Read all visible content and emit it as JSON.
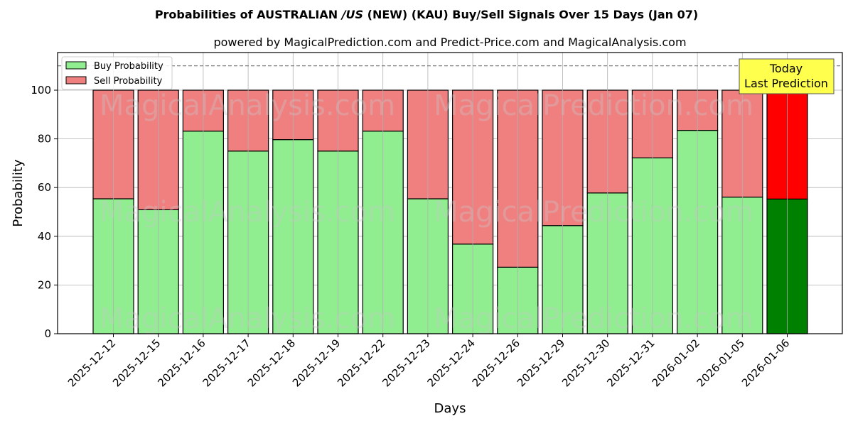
{
  "title_prefix": "Probabilities of AUSTRALIAN ",
  "title_italic": "/US",
  "title_suffix": " (NEW) (KAU) Buy/Sell Signals Over 15 Days (Jan 07)",
  "subtitle": "powered by MagicalPrediction.com and Predict-Price.com and MagicalAnalysis.com",
  "annotation": {
    "line1": "Today",
    "line2": "Last Prediction"
  },
  "watermarks": [
    "MagicalAnalysis.com",
    "MagicalPrediction.com"
  ],
  "colors": {
    "buy": "#90ee90",
    "sell": "#f08080",
    "buy_today": "#008000",
    "sell_today": "#ff0000",
    "annotation_bg": "#ffff4d",
    "grid": "#b0b0b0"
  },
  "chart_data": {
    "type": "bar",
    "stacked": true,
    "title": "Probabilities of AUSTRALIAN /US (NEW) (KAU) Buy/Sell Signals Over 15 Days (Jan 07)",
    "subtitle": "powered by MagicalPrediction.com and Predict-Price.com and MagicalAnalysis.com",
    "xlabel": "Days",
    "ylabel": "Probability",
    "ylim": [
      0,
      115
    ],
    "yticks": [
      0,
      20,
      40,
      60,
      80,
      100
    ],
    "grid": true,
    "legend_position": "upper left",
    "reference_line": {
      "y": 110,
      "style": "dashed"
    },
    "categories": [
      "2025-12-12",
      "2025-12-15",
      "2025-12-16",
      "2025-12-17",
      "2025-12-18",
      "2025-12-19",
      "2025-12-22",
      "2025-12-23",
      "2025-12-24",
      "2025-12-26",
      "2025-12-29",
      "2025-12-30",
      "2025-12-31",
      "2026-01-02",
      "2026-01-05",
      "2026-01-06"
    ],
    "series": [
      {
        "name": "Buy Probability",
        "values": [
          55.4,
          50.9,
          83.2,
          75.0,
          79.7,
          75.0,
          83.2,
          55.4,
          36.8,
          27.3,
          44.4,
          57.8,
          72.2,
          83.5,
          56.1,
          55.3
        ]
      },
      {
        "name": "Sell Probability",
        "values": [
          44.6,
          49.1,
          16.8,
          25.0,
          20.3,
          25.0,
          16.8,
          44.6,
          63.2,
          72.7,
          55.6,
          42.2,
          27.8,
          16.5,
          43.9,
          44.7
        ]
      }
    ],
    "annotation": "Today\nLast Prediction"
  }
}
